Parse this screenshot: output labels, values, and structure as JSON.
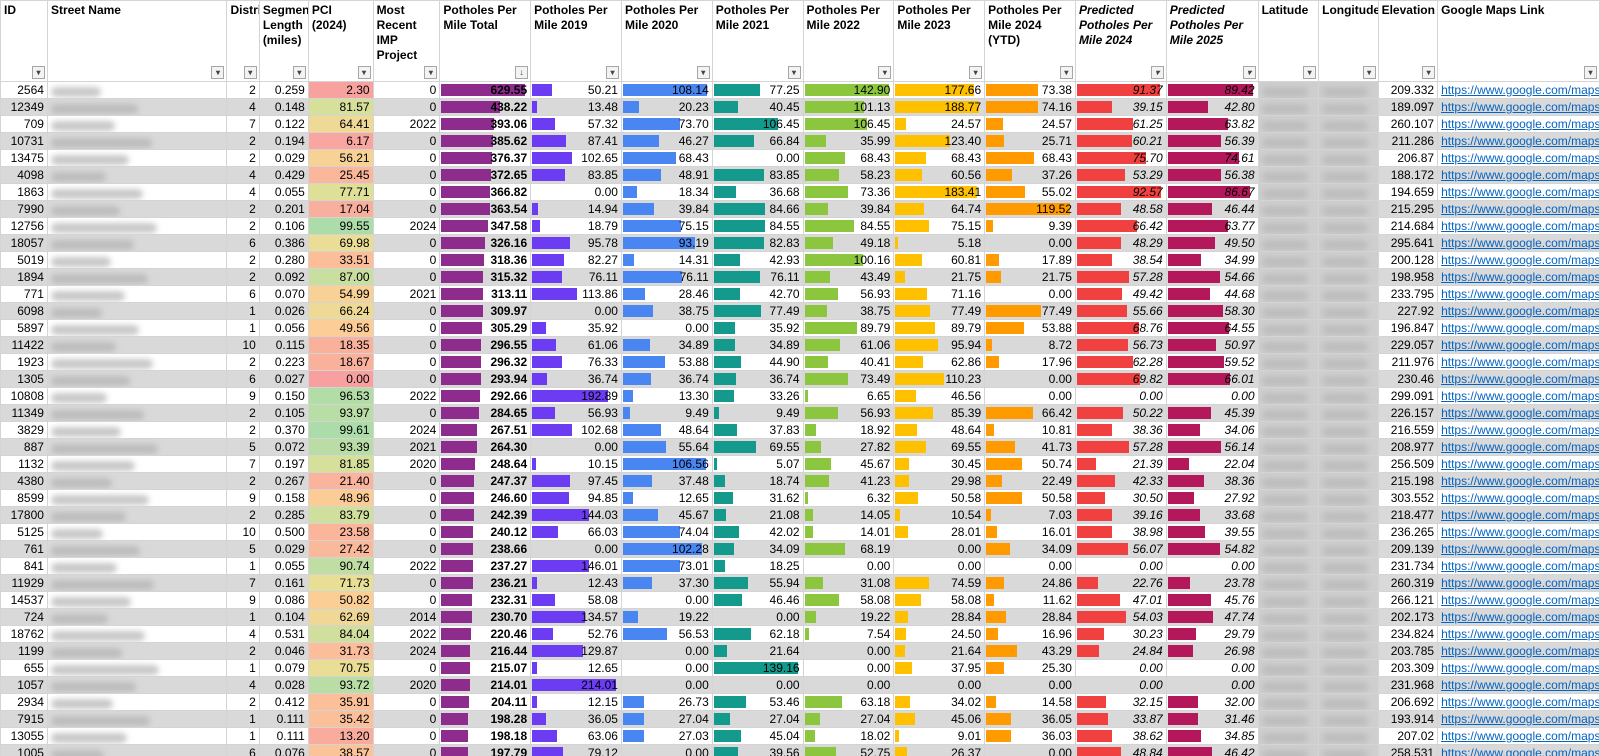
{
  "headers": [
    {
      "label": "ID"
    },
    {
      "label": "Street Name"
    },
    {
      "label": "District"
    },
    {
      "label": "Segment Length (miles)"
    },
    {
      "label": "PCI (2024)"
    },
    {
      "label": "Most Recent IMP Project"
    },
    {
      "label": "Potholes Per Mile Total"
    },
    {
      "label": "Potholes Per Mile 2019"
    },
    {
      "label": "Potholes Per Mile 2020"
    },
    {
      "label": "Potholes Per Mile 2021"
    },
    {
      "label": "Potholes Per Mile 2022"
    },
    {
      "label": "Potholes Per Mile 2023"
    },
    {
      "label": "Potholes Per Mile 2024 (YTD)"
    },
    {
      "label": "Predicted Potholes Per Mile 2024"
    },
    {
      "label": "Predicted Potholes Per Mile 2025"
    },
    {
      "label": "Latitude"
    },
    {
      "label": "Longitude"
    },
    {
      "label": "Elevation"
    },
    {
      "label": "Google Maps Link"
    }
  ],
  "filter_icon": "dropdown-arrow",
  "sort_icon": "sort-descending-arrow",
  "link_text": "https://www.google.com/maps",
  "bar_colors": {
    "total": "#8e2c8e",
    "y2019": "#6b3cf2",
    "y2020": "#4a86f2",
    "y2021": "#149a8c",
    "y2022": "#8cc63f",
    "y2023": "#ffc000",
    "y2024": "#ff9a00",
    "pred2024": "#f04040",
    "pred2025": "#b3185a"
  },
  "bar_max": {
    "total": 629.55,
    "y2019": 214.01,
    "y2020": 108.14,
    "y2021": 139.16,
    "y2022": 142.9,
    "y2023": 188.77,
    "y2024": 119.52,
    "pred2024": 92.57,
    "pred2025": 89.42
  },
  "rows": [
    {
      "id": "2564",
      "district": "2",
      "len": "0.259",
      "pci": "2.30",
      "imp": "0",
      "total": "629.55",
      "y2019": "50.21",
      "y2020": "108.14",
      "y2021": "77.25",
      "y2022": "142.90",
      "y2023": "177.66",
      "y2024": "73.38",
      "pred2024": "91.37",
      "pred2025": "89.42",
      "elev": "209.332"
    },
    {
      "id": "12349",
      "district": "4",
      "len": "0.148",
      "pci": "81.57",
      "imp": "0",
      "total": "438.22",
      "y2019": "13.48",
      "y2020": "20.23",
      "y2021": "40.45",
      "y2022": "101.13",
      "y2023": "188.77",
      "y2024": "74.16",
      "pred2024": "39.15",
      "pred2025": "42.80",
      "elev": "189.097"
    },
    {
      "id": "709",
      "district": "7",
      "len": "0.122",
      "pci": "64.41",
      "imp": "2022",
      "total": "393.06",
      "y2019": "57.32",
      "y2020": "73.70",
      "y2021": "106.45",
      "y2022": "106.45",
      "y2023": "24.57",
      "y2024": "24.57",
      "pred2024": "61.25",
      "pred2025": "63.82",
      "elev": "260.107"
    },
    {
      "id": "10731",
      "district": "2",
      "len": "0.194",
      "pci": "6.17",
      "imp": "0",
      "total": "385.62",
      "y2019": "87.41",
      "y2020": "46.27",
      "y2021": "66.84",
      "y2022": "35.99",
      "y2023": "123.40",
      "y2024": "25.71",
      "pred2024": "60.21",
      "pred2025": "56.39",
      "elev": "211.286"
    },
    {
      "id": "13475",
      "district": "2",
      "len": "0.029",
      "pci": "56.21",
      "imp": "0",
      "total": "376.37",
      "y2019": "102.65",
      "y2020": "68.43",
      "y2021": "0.00",
      "y2022": "68.43",
      "y2023": "68.43",
      "y2024": "68.43",
      "pred2024": "75.70",
      "pred2025": "74.61",
      "elev": "206.87"
    },
    {
      "id": "4098",
      "district": "4",
      "len": "0.429",
      "pci": "25.45",
      "imp": "0",
      "total": "372.65",
      "y2019": "83.85",
      "y2020": "48.91",
      "y2021": "83.85",
      "y2022": "58.23",
      "y2023": "60.56",
      "y2024": "37.26",
      "pred2024": "53.29",
      "pred2025": "56.38",
      "elev": "188.172"
    },
    {
      "id": "1863",
      "district": "4",
      "len": "0.055",
      "pci": "77.71",
      "imp": "0",
      "total": "366.82",
      "y2019": "0.00",
      "y2020": "18.34",
      "y2021": "36.68",
      "y2022": "73.36",
      "y2023": "183.41",
      "y2024": "55.02",
      "pred2024": "92.57",
      "pred2025": "86.67",
      "elev": "194.659"
    },
    {
      "id": "7990",
      "district": "2",
      "len": "0.201",
      "pci": "17.04",
      "imp": "0",
      "total": "363.54",
      "y2019": "14.94",
      "y2020": "39.84",
      "y2021": "84.66",
      "y2022": "39.84",
      "y2023": "64.74",
      "y2024": "119.52",
      "pred2024": "48.58",
      "pred2025": "46.44",
      "elev": "215.295"
    },
    {
      "id": "12756",
      "district": "2",
      "len": "0.106",
      "pci": "99.55",
      "imp": "2024",
      "total": "347.58",
      "y2019": "18.79",
      "y2020": "75.15",
      "y2021": "84.55",
      "y2022": "84.55",
      "y2023": "75.15",
      "y2024": "9.39",
      "pred2024": "66.42",
      "pred2025": "63.77",
      "elev": "214.684"
    },
    {
      "id": "18057",
      "district": "6",
      "len": "0.386",
      "pci": "69.98",
      "imp": "0",
      "total": "326.16",
      "y2019": "95.78",
      "y2020": "93.19",
      "y2021": "82.83",
      "y2022": "49.18",
      "y2023": "5.18",
      "y2024": "0.00",
      "pred2024": "48.29",
      "pred2025": "49.50",
      "elev": "295.641"
    },
    {
      "id": "5019",
      "district": "2",
      "len": "0.280",
      "pci": "33.51",
      "imp": "0",
      "total": "318.36",
      "y2019": "82.27",
      "y2020": "14.31",
      "y2021": "42.93",
      "y2022": "100.16",
      "y2023": "60.81",
      "y2024": "17.89",
      "pred2024": "38.54",
      "pred2025": "34.99",
      "elev": "200.128"
    },
    {
      "id": "1894",
      "district": "2",
      "len": "0.092",
      "pci": "87.00",
      "imp": "0",
      "total": "315.32",
      "y2019": "76.11",
      "y2020": "76.11",
      "y2021": "76.11",
      "y2022": "43.49",
      "y2023": "21.75",
      "y2024": "21.75",
      "pred2024": "57.28",
      "pred2025": "54.66",
      "elev": "198.958"
    },
    {
      "id": "771",
      "district": "6",
      "len": "0.070",
      "pci": "54.99",
      "imp": "2021",
      "total": "313.11",
      "y2019": "113.86",
      "y2020": "28.46",
      "y2021": "42.70",
      "y2022": "56.93",
      "y2023": "71.16",
      "y2024": "0.00",
      "pred2024": "49.42",
      "pred2025": "44.68",
      "elev": "233.795"
    },
    {
      "id": "6098",
      "district": "1",
      "len": "0.026",
      "pci": "66.24",
      "imp": "0",
      "total": "309.97",
      "y2019": "0.00",
      "y2020": "38.75",
      "y2021": "77.49",
      "y2022": "38.75",
      "y2023": "77.49",
      "y2024": "77.49",
      "pred2024": "55.66",
      "pred2025": "58.30",
      "elev": "227.92"
    },
    {
      "id": "5897",
      "district": "1",
      "len": "0.056",
      "pci": "49.56",
      "imp": "0",
      "total": "305.29",
      "y2019": "35.92",
      "y2020": "0.00",
      "y2021": "35.92",
      "y2022": "89.79",
      "y2023": "89.79",
      "y2024": "53.88",
      "pred2024": "68.76",
      "pred2025": "64.55",
      "elev": "196.847"
    },
    {
      "id": "11422",
      "district": "10",
      "len": "0.115",
      "pci": "18.35",
      "imp": "0",
      "total": "296.55",
      "y2019": "61.06",
      "y2020": "34.89",
      "y2021": "34.89",
      "y2022": "61.06",
      "y2023": "95.94",
      "y2024": "8.72",
      "pred2024": "56.73",
      "pred2025": "50.97",
      "elev": "229.057"
    },
    {
      "id": "1923",
      "district": "2",
      "len": "0.223",
      "pci": "18.67",
      "imp": "0",
      "total": "296.32",
      "y2019": "76.33",
      "y2020": "53.88",
      "y2021": "44.90",
      "y2022": "40.41",
      "y2023": "62.86",
      "y2024": "17.96",
      "pred2024": "62.28",
      "pred2025": "59.52",
      "elev": "211.976"
    },
    {
      "id": "1305",
      "district": "6",
      "len": "0.027",
      "pci": "0.00",
      "imp": "0",
      "total": "293.94",
      "y2019": "36.74",
      "y2020": "36.74",
      "y2021": "36.74",
      "y2022": "73.49",
      "y2023": "110.23",
      "y2024": "0.00",
      "pred2024": "69.82",
      "pred2025": "66.01",
      "elev": "230.46"
    },
    {
      "id": "10808",
      "district": "9",
      "len": "0.150",
      "pci": "96.53",
      "imp": "2022",
      "total": "292.66",
      "y2019": "192.89",
      "y2020": "13.30",
      "y2021": "33.26",
      "y2022": "6.65",
      "y2023": "46.56",
      "y2024": "0.00",
      "pred2024": "0.00",
      "pred2025": "0.00",
      "elev": "299.091"
    },
    {
      "id": "11349",
      "district": "2",
      "len": "0.105",
      "pci": "93.97",
      "imp": "0",
      "total": "284.65",
      "y2019": "56.93",
      "y2020": "9.49",
      "y2021": "9.49",
      "y2022": "56.93",
      "y2023": "85.39",
      "y2024": "66.42",
      "pred2024": "50.22",
      "pred2025": "45.39",
      "elev": "226.157"
    },
    {
      "id": "3829",
      "district": "2",
      "len": "0.370",
      "pci": "99.61",
      "imp": "2024",
      "total": "267.51",
      "y2019": "102.68",
      "y2020": "48.64",
      "y2021": "37.83",
      "y2022": "18.92",
      "y2023": "48.64",
      "y2024": "10.81",
      "pred2024": "38.36",
      "pred2025": "34.06",
      "elev": "216.559"
    },
    {
      "id": "887",
      "district": "5",
      "len": "0.072",
      "pci": "93.39",
      "imp": "2021",
      "total": "264.30",
      "y2019": "0.00",
      "y2020": "55.64",
      "y2021": "69.55",
      "y2022": "27.82",
      "y2023": "69.55",
      "y2024": "41.73",
      "pred2024": "57.28",
      "pred2025": "56.14",
      "elev": "208.977"
    },
    {
      "id": "1132",
      "district": "7",
      "len": "0.197",
      "pci": "81.85",
      "imp": "2020",
      "total": "248.64",
      "y2019": "10.15",
      "y2020": "106.56",
      "y2021": "5.07",
      "y2022": "45.67",
      "y2023": "30.45",
      "y2024": "50.74",
      "pred2024": "21.39",
      "pred2025": "22.04",
      "elev": "256.509"
    },
    {
      "id": "4380",
      "district": "2",
      "len": "0.267",
      "pci": "21.40",
      "imp": "0",
      "total": "247.37",
      "y2019": "97.45",
      "y2020": "37.48",
      "y2021": "18.74",
      "y2022": "41.23",
      "y2023": "29.98",
      "y2024": "22.49",
      "pred2024": "42.33",
      "pred2025": "38.36",
      "elev": "215.198"
    },
    {
      "id": "8599",
      "district": "9",
      "len": "0.158",
      "pci": "48.96",
      "imp": "0",
      "total": "246.60",
      "y2019": "94.85",
      "y2020": "12.65",
      "y2021": "31.62",
      "y2022": "6.32",
      "y2023": "50.58",
      "y2024": "50.58",
      "pred2024": "30.50",
      "pred2025": "27.92",
      "elev": "303.552"
    },
    {
      "id": "17800",
      "district": "2",
      "len": "0.285",
      "pci": "83.79",
      "imp": "0",
      "total": "242.39",
      "y2019": "144.03",
      "y2020": "45.67",
      "y2021": "21.08",
      "y2022": "14.05",
      "y2023": "10.54",
      "y2024": "7.03",
      "pred2024": "39.16",
      "pred2025": "33.68",
      "elev": "218.477"
    },
    {
      "id": "5125",
      "district": "10",
      "len": "0.500",
      "pci": "23.58",
      "imp": "0",
      "total": "240.12",
      "y2019": "66.03",
      "y2020": "74.04",
      "y2021": "42.02",
      "y2022": "14.01",
      "y2023": "28.01",
      "y2024": "16.01",
      "pred2024": "38.98",
      "pred2025": "39.55",
      "elev": "236.265"
    },
    {
      "id": "761",
      "district": "5",
      "len": "0.029",
      "pci": "27.42",
      "imp": "0",
      "total": "238.66",
      "y2019": "0.00",
      "y2020": "102.28",
      "y2021": "34.09",
      "y2022": "68.19",
      "y2023": "0.00",
      "y2024": "34.09",
      "pred2024": "56.07",
      "pred2025": "54.82",
      "elev": "209.139"
    },
    {
      "id": "841",
      "district": "1",
      "len": "0.055",
      "pci": "90.74",
      "imp": "2022",
      "total": "237.27",
      "y2019": "146.01",
      "y2020": "73.01",
      "y2021": "18.25",
      "y2022": "0.00",
      "y2023": "0.00",
      "y2024": "0.00",
      "pred2024": "0.00",
      "pred2025": "0.00",
      "elev": "231.734"
    },
    {
      "id": "11929",
      "district": "7",
      "len": "0.161",
      "pci": "71.73",
      "imp": "0",
      "total": "236.21",
      "y2019": "12.43",
      "y2020": "37.30",
      "y2021": "55.94",
      "y2022": "31.08",
      "y2023": "74.59",
      "y2024": "24.86",
      "pred2024": "22.76",
      "pred2025": "23.78",
      "elev": "260.319"
    },
    {
      "id": "14537",
      "district": "9",
      "len": "0.086",
      "pci": "50.82",
      "imp": "0",
      "total": "232.31",
      "y2019": "58.08",
      "y2020": "0.00",
      "y2021": "46.46",
      "y2022": "58.08",
      "y2023": "58.08",
      "y2024": "11.62",
      "pred2024": "47.01",
      "pred2025": "45.76",
      "elev": "266.121"
    },
    {
      "id": "724",
      "district": "1",
      "len": "0.104",
      "pci": "62.69",
      "imp": "2014",
      "total": "230.70",
      "y2019": "134.57",
      "y2020": "19.22",
      "y2021": "0.00",
      "y2022": "19.22",
      "y2023": "28.84",
      "y2024": "28.84",
      "pred2024": "54.03",
      "pred2025": "47.74",
      "elev": "202.173"
    },
    {
      "id": "18762",
      "district": "4",
      "len": "0.531",
      "pci": "84.04",
      "imp": "2022",
      "total": "220.46",
      "y2019": "52.76",
      "y2020": "56.53",
      "y2021": "62.18",
      "y2022": "7.54",
      "y2023": "24.50",
      "y2024": "16.96",
      "pred2024": "30.23",
      "pred2025": "29.79",
      "elev": "234.824"
    },
    {
      "id": "1199",
      "district": "2",
      "len": "0.046",
      "pci": "31.73",
      "imp": "2024",
      "total": "216.44",
      "y2019": "129.87",
      "y2020": "0.00",
      "y2021": "21.64",
      "y2022": "0.00",
      "y2023": "21.64",
      "y2024": "43.29",
      "pred2024": "24.84",
      "pred2025": "26.98",
      "elev": "203.785"
    },
    {
      "id": "655",
      "district": "1",
      "len": "0.079",
      "pci": "70.75",
      "imp": "0",
      "total": "215.07",
      "y2019": "12.65",
      "y2020": "0.00",
      "y2021": "139.16",
      "y2022": "0.00",
      "y2023": "37.95",
      "y2024": "25.30",
      "pred2024": "0.00",
      "pred2025": "0.00",
      "elev": "203.309"
    },
    {
      "id": "1057",
      "district": "4",
      "len": "0.028",
      "pci": "93.72",
      "imp": "2020",
      "total": "214.01",
      "y2019": "214.01",
      "y2020": "0.00",
      "y2021": "0.00",
      "y2022": "0.00",
      "y2023": "0.00",
      "y2024": "0.00",
      "pred2024": "0.00",
      "pred2025": "0.00",
      "elev": "231.968"
    },
    {
      "id": "2934",
      "district": "2",
      "len": "0.412",
      "pci": "35.91",
      "imp": "0",
      "total": "204.11",
      "y2019": "12.15",
      "y2020": "26.73",
      "y2021": "53.46",
      "y2022": "63.18",
      "y2023": "34.02",
      "y2024": "14.58",
      "pred2024": "32.15",
      "pred2025": "32.00",
      "elev": "206.692"
    },
    {
      "id": "7915",
      "district": "1",
      "len": "0.111",
      "pci": "35.42",
      "imp": "0",
      "total": "198.28",
      "y2019": "36.05",
      "y2020": "27.04",
      "y2021": "27.04",
      "y2022": "27.04",
      "y2023": "45.06",
      "y2024": "36.05",
      "pred2024": "33.87",
      "pred2025": "31.46",
      "elev": "193.914"
    },
    {
      "id": "13055",
      "district": "1",
      "len": "0.111",
      "pci": "13.20",
      "imp": "0",
      "total": "198.18",
      "y2019": "63.06",
      "y2020": "27.03",
      "y2021": "45.04",
      "y2022": "18.02",
      "y2023": "9.01",
      "y2024": "36.03",
      "pred2024": "38.62",
      "pred2025": "34.85",
      "elev": "207.02"
    },
    {
      "id": "1005",
      "district": "6",
      "len": "0.076",
      "pci": "38.57",
      "imp": "0",
      "total": "197.79",
      "y2019": "79.12",
      "y2020": "0.00",
      "y2021": "39.56",
      "y2022": "52.75",
      "y2023": "26.37",
      "y2024": "0.00",
      "pred2024": "48.84",
      "pred2025": "46.42",
      "elev": "258.531"
    }
  ]
}
